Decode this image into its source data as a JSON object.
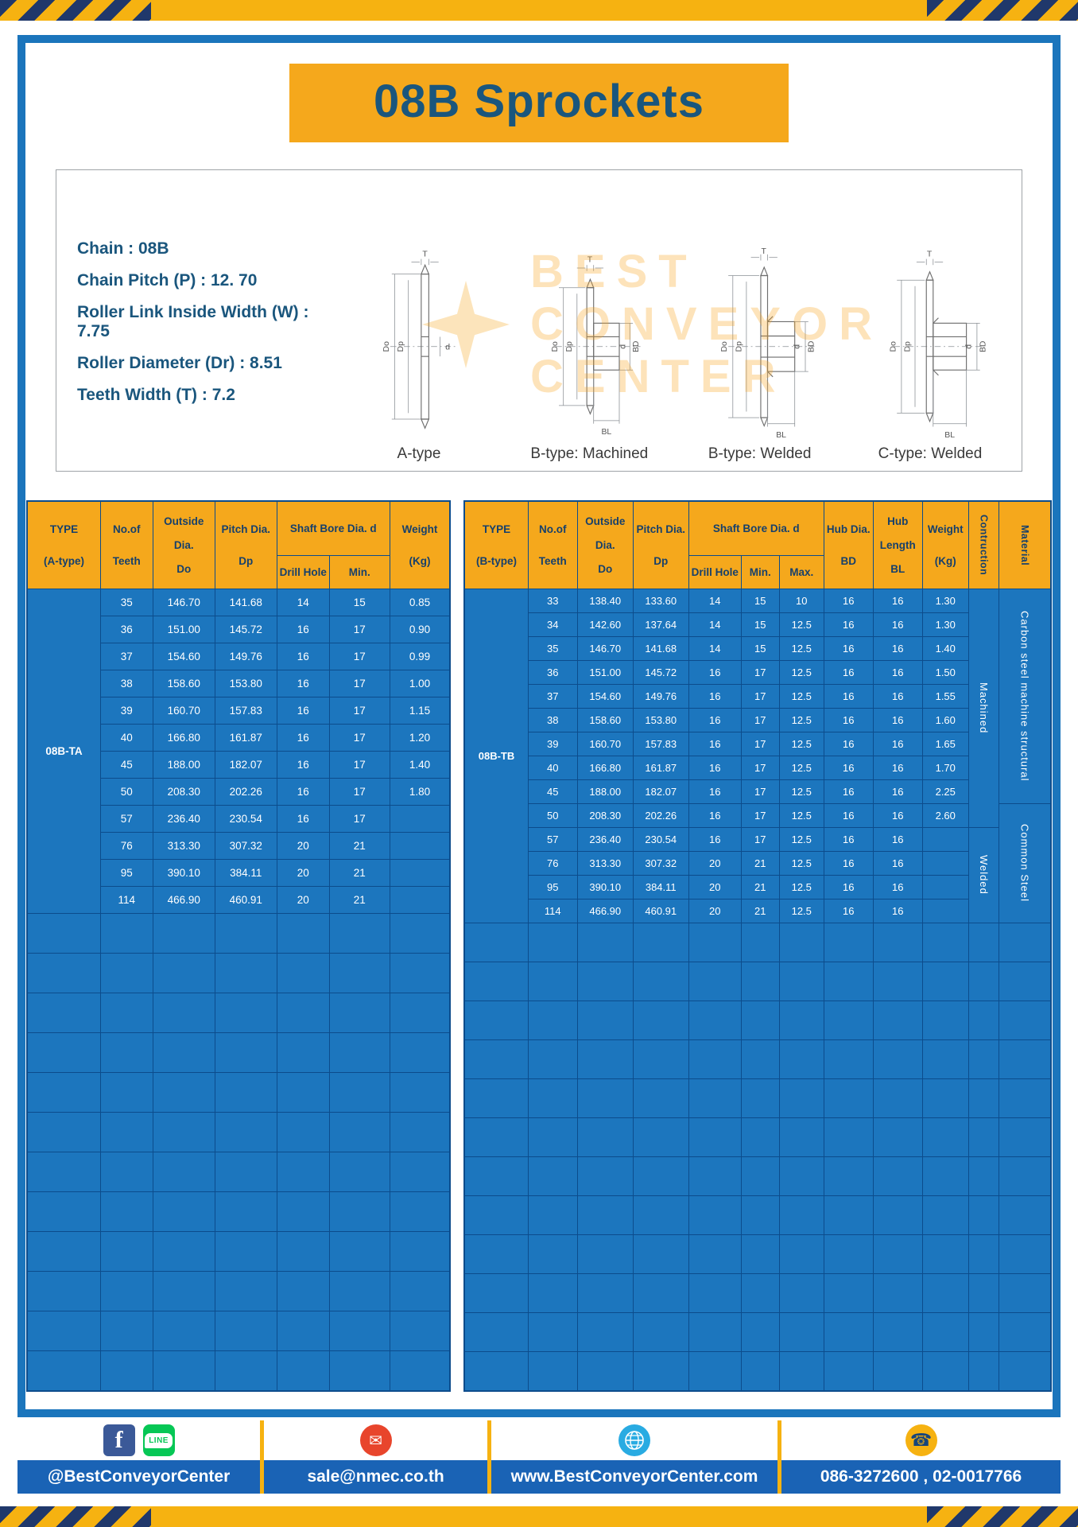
{
  "page": {
    "title": "08B Sprockets"
  },
  "colors": {
    "yellow": "#F5A81C",
    "table_blue": "#1C76BE",
    "grid_navy": "#0C4C8C",
    "title_navy": "#1A567D",
    "footer_blue": "#1A63B5",
    "hazard_navy": "#20386B"
  },
  "specs": [
    "Chain  :  08B",
    "Chain Pitch (P)  :  12. 70",
    "Roller Link Inside Width (W)  :  7.75",
    "Roller Diameter (Dr)  :  8.51",
    "Teeth Width (T)  :  7.2"
  ],
  "watermark": {
    "line1": "BEST",
    "line2": "CONVEYOR",
    "line3": "CENTER"
  },
  "dims": {
    "t": "T",
    "do": "Do",
    "dp": "Dp",
    "d": "d",
    "bl": "BL",
    "bd": "BD"
  },
  "diagrams": [
    {
      "caption": "A-type"
    },
    {
      "caption": "B-type: Machined"
    },
    {
      "caption": "B-type: Welded"
    },
    {
      "caption": "C-type: Welded"
    }
  ],
  "tableA": {
    "h_type1": "TYPE",
    "h_type2": "(A-type)",
    "h_teeth1": "No.of",
    "h_teeth2": "Teeth",
    "h_out1": "Outside",
    "h_out2": "Dia.",
    "h_out3": "Do",
    "h_pitch1": "Pitch Dia.",
    "h_pitch2": "Dp",
    "h_shaft": "Shaft Bore Dia. d",
    "h_drill": "Drill Hole",
    "h_min": "Min.",
    "h_w1": "Weight",
    "h_w2": "(Kg)",
    "type_value": "08B-TA",
    "rows": [
      [
        "35",
        "146.70",
        "141.68",
        "14",
        "15",
        "0.85"
      ],
      [
        "36",
        "151.00",
        "145.72",
        "16",
        "17",
        "0.90"
      ],
      [
        "37",
        "154.60",
        "149.76",
        "16",
        "17",
        "0.99"
      ],
      [
        "38",
        "158.60",
        "153.80",
        "16",
        "17",
        "1.00"
      ],
      [
        "39",
        "160.70",
        "157.83",
        "16",
        "17",
        "1.15"
      ],
      [
        "40",
        "166.80",
        "161.87",
        "16",
        "17",
        "1.20"
      ],
      [
        "45",
        "188.00",
        "182.07",
        "16",
        "17",
        "1.40"
      ],
      [
        "50",
        "208.30",
        "202.26",
        "16",
        "17",
        "1.80"
      ],
      [
        "57",
        "236.40",
        "230.54",
        "16",
        "17",
        ""
      ],
      [
        "76",
        "313.30",
        "307.32",
        "20",
        "21",
        ""
      ],
      [
        "95",
        "390.10",
        "384.11",
        "20",
        "21",
        ""
      ],
      [
        "114",
        "466.90",
        "460.91",
        "20",
        "21",
        ""
      ]
    ],
    "empty_rows": 12,
    "empty_cols": 7
  },
  "tableB": {
    "h_type1": "TYPE",
    "h_type2": "(B-type)",
    "h_teeth1": "No.of",
    "h_teeth2": "Teeth",
    "h_out1": "Outside",
    "h_out2": "Dia.",
    "h_out3": "Do",
    "h_pitch1": "Pitch Dia.",
    "h_pitch2": "Dp",
    "h_shaft": "Shaft Bore Dia. d",
    "h_drill": "Drill Hole",
    "h_min": "Min.",
    "h_max": "Max.",
    "h_bd1": "Hub Dia.",
    "h_bd2": "BD",
    "h_bl1": "Hub",
    "h_bl2": "Length",
    "h_bl3": "BL",
    "h_w1": "Weight",
    "h_w2": "(Kg)",
    "h_cons": "Contruction",
    "h_mat": "Material",
    "type_value": "08B-TB",
    "rows": [
      [
        "33",
        "138.40",
        "133.60",
        "14",
        "15",
        "10",
        "16",
        "16",
        "1.30"
      ],
      [
        "34",
        "142.60",
        "137.64",
        "14",
        "15",
        "12.5",
        "16",
        "16",
        "1.30"
      ],
      [
        "35",
        "146.70",
        "141.68",
        "14",
        "15",
        "12.5",
        "16",
        "16",
        "1.40"
      ],
      [
        "36",
        "151.00",
        "145.72",
        "16",
        "17",
        "12.5",
        "16",
        "16",
        "1.50"
      ],
      [
        "37",
        "154.60",
        "149.76",
        "16",
        "17",
        "12.5",
        "16",
        "16",
        "1.55"
      ],
      [
        "38",
        "158.60",
        "153.80",
        "16",
        "17",
        "12.5",
        "16",
        "16",
        "1.60"
      ],
      [
        "39",
        "160.70",
        "157.83",
        "16",
        "17",
        "12.5",
        "16",
        "16",
        "1.65"
      ],
      [
        "40",
        "166.80",
        "161.87",
        "16",
        "17",
        "12.5",
        "16",
        "16",
        "1.70"
      ],
      [
        "45",
        "188.00",
        "182.07",
        "16",
        "17",
        "12.5",
        "16",
        "16",
        "2.25"
      ],
      [
        "50",
        "208.30",
        "202.26",
        "16",
        "17",
        "12.5",
        "16",
        "16",
        "2.60"
      ],
      [
        "57",
        "236.40",
        "230.54",
        "16",
        "17",
        "12.5",
        "16",
        "16",
        ""
      ],
      [
        "76",
        "313.30",
        "307.32",
        "20",
        "21",
        "12.5",
        "16",
        "16",
        ""
      ],
      [
        "95",
        "390.10",
        "384.11",
        "20",
        "21",
        "12.5",
        "16",
        "16",
        ""
      ],
      [
        "114",
        "466.90",
        "460.91",
        "20",
        "21",
        "12.5",
        "16",
        "16",
        ""
      ]
    ],
    "construction_groups": [
      {
        "label": "Machined",
        "span": 10
      },
      {
        "label": "Welded",
        "span": 4
      }
    ],
    "material_groups": [
      {
        "label": "Carbon steel  machine structural",
        "span": 9
      },
      {
        "label": "Common  Steel",
        "span": 5
      }
    ],
    "empty_rows": 12,
    "empty_cols": 12
  },
  "footer": {
    "facebook": "@BestConveyorCenter",
    "email": "sale@nmec.co.th",
    "website": "www.BestConveyorCenter.com",
    "phone": "086-3272600 , 02-0017766",
    "fb_glyph": "f",
    "line_glyph": "LINE",
    "mail_glyph": "✉",
    "phone_glyph": "☎"
  }
}
